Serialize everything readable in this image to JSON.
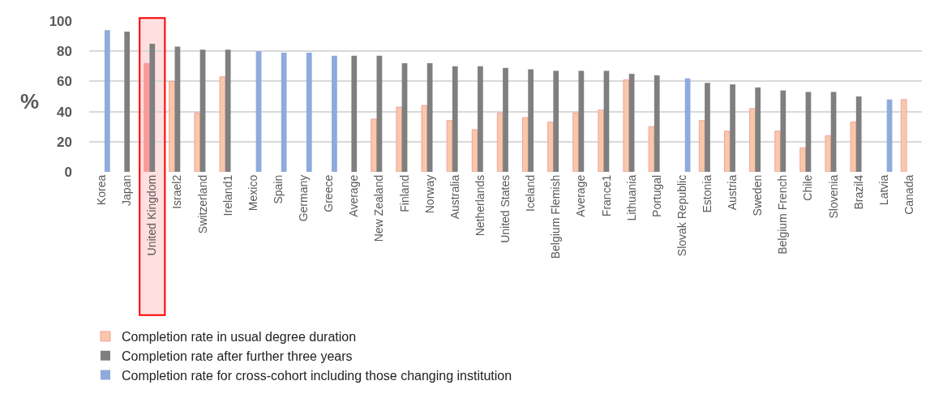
{
  "chart_data": {
    "type": "bar",
    "ylabel": "%",
    "categories": [
      "Korea",
      "Japan",
      "United Kingdom",
      "Israel2",
      "Switzerland",
      "Ireland1",
      "Mexico",
      "Spain",
      "Germany",
      "Greece",
      "Average",
      "New Zealand",
      "Finland",
      "Norway",
      "Australia",
      "Netherlands",
      "United States",
      "Iceland",
      "Belgium Flemish",
      "Average",
      "France1",
      "Lithuania",
      "Portugal",
      "Slovak Republic",
      "Estonia",
      "Austria",
      "Sweden",
      "Belgium French",
      "Chile",
      "Slovenia",
      "Brazil4",
      "Latvia",
      "Canada"
    ],
    "series": [
      {
        "name": "Completion rate in usual degree duration",
        "colors": [
          "#f8c8a8",
          "#f8c8a8",
          "#f99a9a",
          "#f8c8a8",
          "#f8c8a8",
          "#f8c8a8",
          "#f8c8a8",
          "#f8c8a8",
          "#f8c8a8",
          "#f8c8a8",
          "#f8c8a8",
          "#f8c8a8",
          "#f8c8a8",
          "#f8c8a8",
          "#f8c8a8",
          "#f8c8a8",
          "#f8c8a8",
          "#f8c8a8",
          "#f8c8a8",
          "#f8c8a8",
          "#f8c8a8",
          "#f8c8a8",
          "#f8c8a8",
          "#f8c8a8",
          "#f8c8a8",
          "#f8c8a8",
          "#f8c8a8",
          "#f8c8a8",
          "#f8c8a8",
          "#f8c8a8",
          "#f8c8a8",
          "#f8c8a8",
          "#f8c8a8"
        ],
        "values": [
          null,
          null,
          72,
          60,
          39,
          63,
          null,
          null,
          null,
          null,
          null,
          35,
          43,
          44,
          34,
          28,
          39,
          36,
          33,
          39,
          41,
          61,
          30,
          null,
          34,
          27,
          42,
          27,
          16,
          24,
          33,
          null,
          48
        ]
      },
      {
        "name": "Completion rate after further three years",
        "color": "#7f7f7f",
        "values": [
          null,
          93,
          85,
          83,
          81,
          81,
          null,
          null,
          null,
          null,
          77,
          77,
          72,
          72,
          70,
          70,
          69,
          68,
          67,
          67,
          67,
          65,
          64,
          null,
          59,
          58,
          56,
          54,
          53,
          53,
          50,
          null,
          null
        ]
      },
      {
        "name": "Completion rate for cross-cohort including those changing institution",
        "color": "#8faadc",
        "values": [
          94,
          null,
          null,
          null,
          null,
          null,
          80,
          79,
          79,
          77,
          null,
          null,
          null,
          null,
          null,
          null,
          null,
          null,
          null,
          null,
          null,
          null,
          null,
          62,
          null,
          null,
          null,
          null,
          null,
          null,
          null,
          48,
          null
        ]
      }
    ],
    "bands": [
      {
        "axis": "x",
        "from": "United Kingdom",
        "to": "United Kingdom",
        "color": "#ff0000"
      }
    ],
    "ylim": [
      0,
      100
    ],
    "yticks": [
      0,
      20,
      40,
      60,
      80,
      100
    ],
    "grid": "y",
    "legend": "bottom"
  }
}
